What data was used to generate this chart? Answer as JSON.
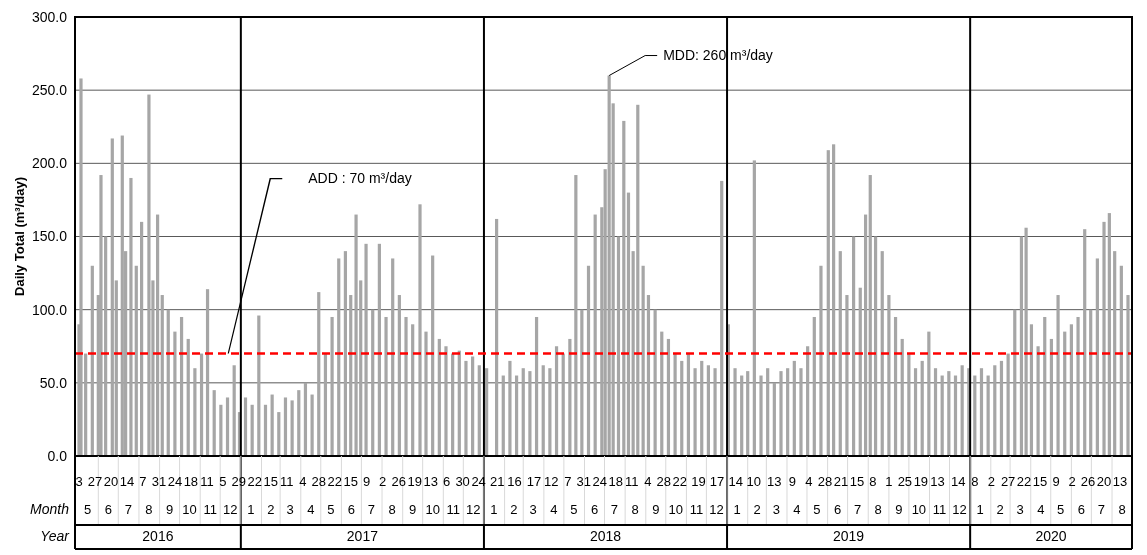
{
  "chart_data": {
    "type": "bar",
    "ylabel": "Daily Total (m³/day)",
    "ylim": [
      0,
      300
    ],
    "yticks": [
      {
        "value": 0,
        "label": "0.0"
      },
      {
        "value": 50,
        "label": "50.0"
      },
      {
        "value": 100,
        "label": "100.0"
      },
      {
        "value": 150,
        "label": "150.0"
      },
      {
        "value": 200,
        "label": "200.0"
      },
      {
        "value": 250,
        "label": "250.0"
      },
      {
        "value": 300,
        "label": "300.0"
      }
    ],
    "grid": "y",
    "xlim": [
      "2016-04-27",
      "2020-08-31"
    ],
    "xticks": [
      {
        "value": "2016-05-03",
        "label": "3"
      },
      {
        "value": "2016-05-27",
        "label": "27"
      },
      {
        "value": "2016-06-20",
        "label": "20"
      },
      {
        "value": "2016-07-14",
        "label": "14"
      },
      {
        "value": "2016-08-07",
        "label": "7"
      },
      {
        "value": "2016-08-31",
        "label": "31"
      },
      {
        "value": "2016-09-24",
        "label": "24"
      },
      {
        "value": "2016-10-18",
        "label": "18"
      },
      {
        "value": "2016-11-11",
        "label": "11"
      },
      {
        "value": "2016-12-05",
        "label": "5"
      },
      {
        "value": "2016-12-29",
        "label": "29"
      },
      {
        "value": "2017-01-22",
        "label": "22"
      },
      {
        "value": "2017-02-15",
        "label": "15"
      },
      {
        "value": "2017-03-11",
        "label": "11"
      },
      {
        "value": "2017-04-04",
        "label": "4"
      },
      {
        "value": "2017-04-28",
        "label": "28"
      },
      {
        "value": "2017-05-22",
        "label": "22"
      },
      {
        "value": "2017-06-15",
        "label": "15"
      },
      {
        "value": "2017-07-09",
        "label": "9"
      },
      {
        "value": "2017-08-02",
        "label": "2"
      },
      {
        "value": "2017-08-26",
        "label": "26"
      },
      {
        "value": "2017-09-19",
        "label": "19"
      },
      {
        "value": "2017-10-13",
        "label": "13"
      },
      {
        "value": "2017-11-06",
        "label": "6"
      },
      {
        "value": "2017-11-30",
        "label": "30"
      },
      {
        "value": "2017-12-24",
        "label": "24"
      },
      {
        "value": "2018-01-21",
        "label": "21"
      },
      {
        "value": "2018-02-16",
        "label": "16"
      },
      {
        "value": "2018-03-17",
        "label": "17"
      },
      {
        "value": "2018-04-12",
        "label": "12"
      },
      {
        "value": "2018-05-07",
        "label": "7"
      },
      {
        "value": "2018-05-31",
        "label": "31"
      },
      {
        "value": "2018-06-24",
        "label": "24"
      },
      {
        "value": "2018-07-18",
        "label": "18"
      },
      {
        "value": "2018-08-11",
        "label": "11"
      },
      {
        "value": "2018-09-04",
        "label": "4"
      },
      {
        "value": "2018-09-28",
        "label": "28"
      },
      {
        "value": "2018-10-22",
        "label": "22"
      },
      {
        "value": "2018-11-19",
        "label": "19"
      },
      {
        "value": "2018-12-17",
        "label": "17"
      },
      {
        "value": "2019-01-14",
        "label": "14"
      },
      {
        "value": "2019-02-10",
        "label": "10"
      },
      {
        "value": "2019-03-13",
        "label": "13"
      },
      {
        "value": "2019-04-09",
        "label": "9"
      },
      {
        "value": "2019-05-04",
        "label": "4"
      },
      {
        "value": "2019-05-28",
        "label": "28"
      },
      {
        "value": "2019-06-21",
        "label": "21"
      },
      {
        "value": "2019-07-15",
        "label": "15"
      },
      {
        "value": "2019-08-08",
        "label": "8"
      },
      {
        "value": "2019-09-01",
        "label": "1"
      },
      {
        "value": "2019-09-25",
        "label": "25"
      },
      {
        "value": "2019-10-19",
        "label": "19"
      },
      {
        "value": "2019-11-13",
        "label": "13"
      },
      {
        "value": "2019-12-14",
        "label": "14"
      },
      {
        "value": "2020-01-08",
        "label": "8"
      },
      {
        "value": "2020-02-02",
        "label": "2"
      },
      {
        "value": "2020-02-27",
        "label": "27"
      },
      {
        "value": "2020-03-22",
        "label": "22"
      },
      {
        "value": "2020-04-15",
        "label": "15"
      },
      {
        "value": "2020-05-09",
        "label": "9"
      },
      {
        "value": "2020-06-02",
        "label": "2"
      },
      {
        "value": "2020-06-26",
        "label": "26"
      },
      {
        "value": "2020-07-20",
        "label": "20"
      },
      {
        "value": "2020-08-13",
        "label": "13"
      }
    ],
    "series": [
      {
        "color": "#a6a6a6",
        "x": [
          "2016-05-03",
          "2016-05-06",
          "2016-05-13",
          "2016-05-23",
          "2016-06-01",
          "2016-06-05",
          "2016-06-12",
          "2016-06-22",
          "2016-06-28",
          "2016-07-07",
          "2016-07-12",
          "2016-07-20",
          "2016-07-28",
          "2016-08-05",
          "2016-08-16",
          "2016-08-22",
          "2016-08-29",
          "2016-09-05",
          "2016-09-14",
          "2016-09-24",
          "2016-10-04",
          "2016-10-14",
          "2016-10-24",
          "2016-11-03",
          "2016-11-12",
          "2016-11-22",
          "2016-12-02",
          "2016-12-12",
          "2016-12-22",
          "2016-12-30",
          "2017-01-08",
          "2017-01-18",
          "2017-01-28",
          "2017-02-07",
          "2017-02-17",
          "2017-02-27",
          "2017-03-09",
          "2017-03-19",
          "2017-03-29",
          "2017-04-08",
          "2017-04-18",
          "2017-04-28",
          "2017-05-08",
          "2017-05-18",
          "2017-05-28",
          "2017-06-07",
          "2017-06-15",
          "2017-06-23",
          "2017-06-30",
          "2017-07-08",
          "2017-07-18",
          "2017-07-28",
          "2017-08-07",
          "2017-08-17",
          "2017-08-27",
          "2017-09-06",
          "2017-09-16",
          "2017-09-27",
          "2017-10-06",
          "2017-10-16",
          "2017-10-26",
          "2017-11-05",
          "2017-11-15",
          "2017-11-25",
          "2017-12-05",
          "2017-12-15",
          "2017-12-25",
          "2018-01-05",
          "2018-01-20",
          "2018-01-30",
          "2018-02-09",
          "2018-02-19",
          "2018-03-01",
          "2018-03-11",
          "2018-03-21",
          "2018-03-31",
          "2018-04-10",
          "2018-04-20",
          "2018-04-30",
          "2018-05-10",
          "2018-05-19",
          "2018-05-28",
          "2018-06-07",
          "2018-06-17",
          "2018-06-27",
          "2018-07-02",
          "2018-07-08",
          "2018-07-14",
          "2018-07-22",
          "2018-07-30",
          "2018-08-06",
          "2018-08-13",
          "2018-08-20",
          "2018-08-28",
          "2018-09-05",
          "2018-09-15",
          "2018-09-25",
          "2018-10-05",
          "2018-10-15",
          "2018-10-25",
          "2018-11-04",
          "2018-11-14",
          "2018-11-24",
          "2018-12-04",
          "2018-12-14",
          "2018-12-24",
          "2019-01-03",
          "2019-01-13",
          "2019-01-23",
          "2019-02-01",
          "2019-02-11",
          "2019-02-21",
          "2019-03-03",
          "2019-03-13",
          "2019-03-23",
          "2019-04-02",
          "2019-04-12",
          "2019-04-22",
          "2019-05-02",
          "2019-05-12",
          "2019-05-22",
          "2019-06-02",
          "2019-06-10",
          "2019-06-20",
          "2019-06-30",
          "2019-07-10",
          "2019-07-20",
          "2019-07-28",
          "2019-08-04",
          "2019-08-12",
          "2019-08-22",
          "2019-09-01",
          "2019-09-11",
          "2019-09-21",
          "2019-10-01",
          "2019-10-11",
          "2019-10-21",
          "2019-10-31",
          "2019-11-10",
          "2019-11-20",
          "2019-11-30",
          "2019-12-10",
          "2019-12-20",
          "2019-12-30",
          "2020-01-08",
          "2020-01-18",
          "2020-01-28",
          "2020-02-07",
          "2020-02-17",
          "2020-02-27",
          "2020-03-08",
          "2020-03-18",
          "2020-03-25",
          "2020-04-02",
          "2020-04-12",
          "2020-04-22",
          "2020-05-02",
          "2020-05-12",
          "2020-05-22",
          "2020-06-01",
          "2020-06-11",
          "2020-06-21",
          "2020-06-30",
          "2020-07-10",
          "2020-07-20",
          "2020-07-28",
          "2020-08-05",
          "2020-08-15",
          "2020-08-25"
        ],
        "values": [
          90,
          258,
          70,
          130,
          110,
          192,
          150,
          217,
          120,
          219,
          140,
          190,
          130,
          160,
          247,
          120,
          165,
          110,
          100,
          85,
          95,
          80,
          60,
          70,
          114,
          45,
          35,
          40,
          62,
          30,
          40,
          35,
          96,
          35,
          42,
          30,
          40,
          38,
          45,
          50,
          42,
          112,
          70,
          95,
          135,
          140,
          110,
          165,
          120,
          145,
          100,
          145,
          95,
          135,
          110,
          95,
          90,
          172,
          85,
          137,
          80,
          75,
          70,
          72,
          65,
          68,
          62,
          60,
          162,
          55,
          65,
          55,
          60,
          58,
          95,
          62,
          60,
          75,
          70,
          80,
          192,
          100,
          130,
          165,
          170,
          196,
          260,
          241,
          150,
          229,
          180,
          140,
          240,
          130,
          110,
          100,
          85,
          80,
          70,
          65,
          70,
          60,
          65,
          62,
          60,
          188,
          90,
          60,
          55,
          58,
          202,
          55,
          60,
          50,
          58,
          60,
          65,
          60,
          75,
          95,
          130,
          209,
          213,
          140,
          110,
          150,
          115,
          165,
          192,
          150,
          140,
          110,
          95,
          80,
          70,
          60,
          65,
          85,
          60,
          55,
          58,
          55,
          62,
          60,
          55,
          60,
          55,
          62,
          65,
          70,
          100,
          150,
          156,
          90,
          75,
          95,
          80,
          110,
          85,
          90,
          95,
          155,
          100,
          135,
          160,
          166,
          140,
          130,
          110
        ]
      }
    ],
    "ref_lines": [
      {
        "axis": "y",
        "value": 70,
        "color": "#ff0000",
        "line_style": "dashed"
      },
      {
        "axis": "x",
        "value": "2017-01-01",
        "color": "#000000"
      },
      {
        "axis": "x",
        "value": "2018-01-01",
        "color": "#000000"
      },
      {
        "axis": "x",
        "value": "2019-01-01",
        "color": "#000000"
      },
      {
        "axis": "x",
        "value": "2020-01-01",
        "color": "#000000"
      }
    ],
    "x2label": "Month",
    "x2lim": [
      "2016-04-27",
      "2020-08-31"
    ],
    "x2ticks": [
      {
        "value": "2016-05-16",
        "label": "5"
      },
      {
        "value": "2016-06-16",
        "label": "6"
      },
      {
        "value": "2016-07-16",
        "label": "7"
      },
      {
        "value": "2016-08-16",
        "label": "8"
      },
      {
        "value": "2016-09-16",
        "label": "9"
      },
      {
        "value": "2016-10-16",
        "label": "10"
      },
      {
        "value": "2016-11-16",
        "label": "11"
      },
      {
        "value": "2016-12-16",
        "label": "12"
      },
      {
        "value": "2017-01-16",
        "label": "1"
      },
      {
        "value": "2017-02-15",
        "label": "2"
      },
      {
        "value": "2017-03-16",
        "label": "3"
      },
      {
        "value": "2017-04-16",
        "label": "4"
      },
      {
        "value": "2017-05-16",
        "label": "5"
      },
      {
        "value": "2017-06-16",
        "label": "6"
      },
      {
        "value": "2017-07-16",
        "label": "7"
      },
      {
        "value": "2017-08-16",
        "label": "8"
      },
      {
        "value": "2017-09-16",
        "label": "9"
      },
      {
        "value": "2017-10-16",
        "label": "10"
      },
      {
        "value": "2017-11-16",
        "label": "11"
      },
      {
        "value": "2017-12-16",
        "label": "12"
      },
      {
        "value": "2018-01-16",
        "label": "1"
      },
      {
        "value": "2018-02-15",
        "label": "2"
      },
      {
        "value": "2018-03-16",
        "label": "3"
      },
      {
        "value": "2018-04-16",
        "label": "4"
      },
      {
        "value": "2018-05-16",
        "label": "5"
      },
      {
        "value": "2018-06-16",
        "label": "6"
      },
      {
        "value": "2018-07-16",
        "label": "7"
      },
      {
        "value": "2018-08-16",
        "label": "8"
      },
      {
        "value": "2018-09-16",
        "label": "9"
      },
      {
        "value": "2018-10-16",
        "label": "10"
      },
      {
        "value": "2018-11-16",
        "label": "11"
      },
      {
        "value": "2018-12-16",
        "label": "12"
      },
      {
        "value": "2019-01-16",
        "label": "1"
      },
      {
        "value": "2019-02-15",
        "label": "2"
      },
      {
        "value": "2019-03-16",
        "label": "3"
      },
      {
        "value": "2019-04-16",
        "label": "4"
      },
      {
        "value": "2019-05-16",
        "label": "5"
      },
      {
        "value": "2019-06-16",
        "label": "6"
      },
      {
        "value": "2019-07-16",
        "label": "7"
      },
      {
        "value": "2019-08-16",
        "label": "8"
      },
      {
        "value": "2019-09-16",
        "label": "9"
      },
      {
        "value": "2019-10-16",
        "label": "10"
      },
      {
        "value": "2019-11-16",
        "label": "11"
      },
      {
        "value": "2019-12-16",
        "label": "12"
      },
      {
        "value": "2020-01-16",
        "label": "1"
      },
      {
        "value": "2020-02-15",
        "label": "2"
      },
      {
        "value": "2020-03-16",
        "label": "3"
      },
      {
        "value": "2020-04-16",
        "label": "4"
      },
      {
        "value": "2020-05-16",
        "label": "5"
      },
      {
        "value": "2020-06-16",
        "label": "6"
      },
      {
        "value": "2020-07-16",
        "label": "7"
      },
      {
        "value": "2020-08-16",
        "label": "8"
      }
    ],
    "annotations": [
      {
        "text": "MDD: 260 m³/day",
        "x": "2018-07-08",
        "y": 260
      },
      "Year",
      "2016",
      "2017",
      "2018",
      "2019",
      "2020",
      "ADD : 70 m³/day"
    ]
  }
}
